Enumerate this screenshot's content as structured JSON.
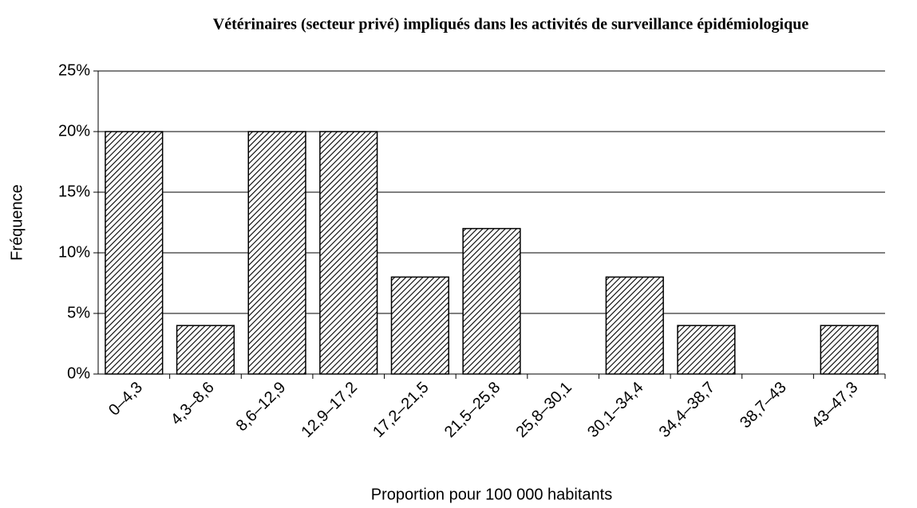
{
  "chart_data": {
    "type": "bar",
    "title": "Vétérinaires (secteur privé) impliqués dans les activités de surveillance épidémiologique",
    "x_label": "Proportion pour 100 000 habitants",
    "y_label": "Fréquence",
    "categories": [
      "0–4,3",
      "4,3–8,6",
      "8,6–12,9",
      "12,9–17,2",
      "17,2–21,5",
      "21,5–25,8",
      "25,8–30,1",
      "30,1–34,4",
      "34,4–38,7",
      "38,7–43",
      "43–47,3"
    ],
    "values": [
      20,
      4,
      20,
      20,
      8,
      12,
      0,
      8,
      4,
      0,
      4
    ],
    "color": "#000000",
    "ylim": [
      0,
      25
    ],
    "yticks": [
      {
        "value": 0,
        "label": "0%"
      },
      {
        "value": 5,
        "label": "5%"
      },
      {
        "value": 10,
        "label": "10%"
      },
      {
        "value": 15,
        "label": "15%"
      },
      {
        "value": 20,
        "label": "20%"
      },
      {
        "value": 25,
        "label": "25%"
      }
    ],
    "grid": true
  }
}
